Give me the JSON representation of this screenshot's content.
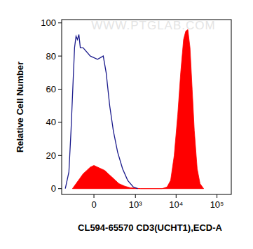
{
  "chart_data": {
    "type": "line",
    "xlabel": "CL594-65570 CD3(UCHT1),ECD-A",
    "ylabel": "Relative Cell Number",
    "annotations": [
      "WWW.PTGLAB.COM"
    ],
    "xlim": [
      -585,
      224000
    ],
    "xticks": [
      0,
      {
        "value": 1000,
        "label": "10³"
      },
      {
        "value": 10000,
        "label": "10⁴"
      },
      {
        "value": 100000,
        "label": "10⁵"
      }
    ],
    "ylim": [
      -3.5,
      102
    ],
    "yticks": [
      0,
      20,
      40,
      60,
      80,
      100
    ],
    "grid": false,
    "series": [
      {
        "type": "area",
        "color": "#ff0000",
        "x": [
          -298,
          -232,
          -175,
          -126,
          -81,
          -40,
          0,
          40,
          81,
          126,
          175,
          232,
          298,
          376,
          536,
          753,
          1340,
          4524,
          6006,
          7351,
          8990,
          11000,
          12950,
          15230,
          17180,
          19400,
          21900,
          24730,
          27900,
          32800,
          38550,
          47170
        ],
        "values": [
          0,
          3,
          6,
          9,
          11,
          13,
          14,
          13,
          12,
          11,
          9,
          7,
          5,
          3,
          1.5,
          0.5,
          0,
          0,
          1,
          5,
          20,
          45,
          70,
          90,
          95,
          96,
          85,
          60,
          35,
          12,
          3,
          0
        ]
      },
      {
        "type": "line",
        "color": "#1a1a8c",
        "x": [
          -470,
          -376,
          -328,
          -285,
          -258,
          -232,
          -209,
          -186,
          -165,
          -126,
          -40,
          40,
          107,
          145,
          197,
          258,
          345,
          470,
          638,
          889,
          1139
        ],
        "values": [
          0,
          10,
          35,
          65,
          85,
          92,
          90,
          93,
          85,
          85,
          80,
          78,
          80,
          70,
          50,
          35,
          22,
          12,
          5,
          1,
          0
        ]
      }
    ]
  }
}
